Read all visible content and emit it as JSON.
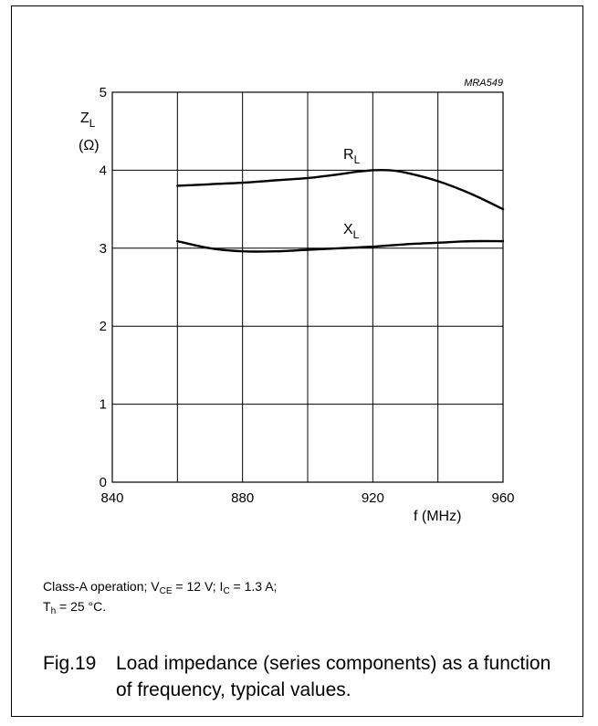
{
  "chart_data": {
    "type": "line",
    "code": "MRA549",
    "xlabel": "f (MHz)",
    "ylabel_main": "Z",
    "ylabel_sub": "L",
    "ylabel_unit": "(Ω)",
    "xlim": [
      840,
      960
    ],
    "ylim": [
      0,
      5
    ],
    "grid": true,
    "x_ticks": [
      "840",
      "880",
      "920",
      "960"
    ],
    "y_ticks": [
      "0",
      "1",
      "2",
      "3",
      "4",
      "5"
    ],
    "series": [
      {
        "name": "R",
        "name_sub": "L",
        "x": [
          860,
          870,
          880,
          890,
          900,
          910,
          915,
          920,
          925,
          930,
          940,
          950,
          960
        ],
        "y": [
          3.8,
          3.82,
          3.84,
          3.87,
          3.9,
          3.95,
          3.98,
          4.0,
          4.0,
          3.97,
          3.86,
          3.7,
          3.5
        ]
      },
      {
        "name": "X",
        "name_sub": "L",
        "x": [
          860,
          870,
          880,
          890,
          900,
          910,
          920,
          930,
          940,
          950,
          960
        ],
        "y": [
          3.09,
          3.0,
          2.96,
          2.96,
          2.98,
          3.0,
          3.02,
          3.05,
          3.07,
          3.09,
          3.09
        ]
      }
    ]
  },
  "conditions": {
    "line1_a": "Class-A operation; V",
    "line1_a_sub": "CE",
    "line1_b": " = 12 V; I",
    "line1_b_sub": "C",
    "line1_c": " =  1.3 A;",
    "line2_a": "T",
    "line2_a_sub": "h",
    "line2_b": " = 25 °C."
  },
  "caption": {
    "number": "Fig.19",
    "text": "Load impedance (series components) as a function of frequency, typical values."
  }
}
